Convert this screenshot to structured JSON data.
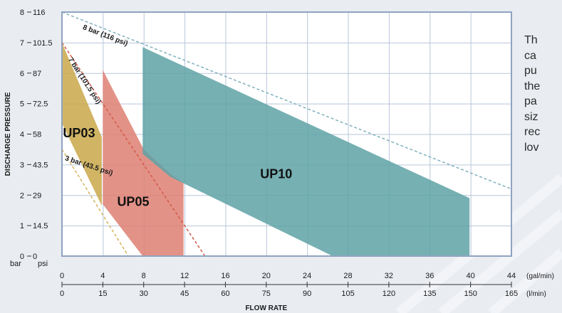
{
  "colors": {
    "background": "#e9ecf1",
    "plot_bg": "#ffffff",
    "grid": "#b9c6da",
    "frame": "#8fa3c0",
    "axis_text": "#1a1a1a",
    "up03": "#c9a84a",
    "up05": "#de7f72",
    "up10": "#5ea2a6",
    "line_8bar": "#7fb0bd",
    "line_7bar": "#d45a4a",
    "line_3bar": "#d6b25a"
  },
  "chart_data": {
    "type": "area",
    "xlabel": "FLOW RATE",
    "ylabel": "DISCHARGE PRESSURE",
    "xlim": [
      0,
      44
    ],
    "ylim": [
      0,
      8
    ],
    "grid": true,
    "x_ticks_gal": [
      "0",
      "4",
      "8",
      "12",
      "16",
      "20",
      "24",
      "28",
      "32",
      "36",
      "40",
      "44"
    ],
    "x_unit_gal": "(gal/min)",
    "x_ticks_l": [
      "0",
      "15",
      "30",
      "45",
      "60",
      "75",
      "90",
      "105",
      "120",
      "135",
      "150",
      "165"
    ],
    "x_unit_l": "(l/min)",
    "y_ticks_bar": [
      "0",
      "1",
      "2",
      "3",
      "4",
      "5",
      "6",
      "7",
      "8"
    ],
    "y_ticks_psi": [
      "0",
      "14.5",
      "29",
      "43.5",
      "58",
      "72.5",
      "87",
      "101.5",
      "116"
    ],
    "y_unit_bar": "bar",
    "y_unit_psi": "psi",
    "series": [
      {
        "name": "UP03",
        "color": "#c9a84a",
        "label_at": [
          0.1,
          3.9
        ],
        "polygon": [
          [
            0,
            7
          ],
          [
            3.9,
            3.9
          ],
          [
            3.9,
            1.65
          ],
          [
            0,
            4.35
          ]
        ]
      },
      {
        "name": "UP05",
        "color": "#de7f72",
        "label_at": [
          5.4,
          1.65
        ],
        "polygon": [
          [
            4,
            6.1
          ],
          [
            8,
            3.5
          ],
          [
            10.6,
            2.7
          ],
          [
            11.9,
            2.4
          ],
          [
            11.9,
            0
          ],
          [
            7.9,
            0
          ],
          [
            4,
            1.7
          ]
        ]
      },
      {
        "name": "UP10",
        "color": "#5ea2a6",
        "label_at": [
          19.4,
          2.55
        ],
        "polygon": [
          [
            7.9,
            6.85
          ],
          [
            39.9,
            1.9
          ],
          [
            39.9,
            0
          ],
          [
            26.5,
            0
          ],
          [
            10.6,
            2.6
          ],
          [
            7.9,
            3.35
          ]
        ]
      }
    ],
    "reference_lines": [
      {
        "label": "8 bar (116 psi)",
        "color": "#7fb0bd",
        "points": [
          [
            0,
            8
          ],
          [
            44,
            2.2
          ]
        ],
        "label_at": [
          2.0,
          7.45
        ],
        "label_angle": 21
      },
      {
        "label": "7 bar (101.5 psi)",
        "color": "#d45a4a",
        "points": [
          [
            0,
            7
          ],
          [
            14,
            0
          ]
        ],
        "label_at": [
          0.6,
          6.45
        ],
        "label_angle": 57
      },
      {
        "label": "3 bar (43.5 psi)",
        "color": "#d6b25a",
        "points": [
          [
            0,
            3.5
          ],
          [
            6.5,
            0
          ]
        ],
        "label_at": [
          0.25,
          3.15
        ],
        "label_angle": 18
      }
    ]
  },
  "side_text_lines": [
    "Th",
    "ca",
    "pu",
    "the",
    "pa",
    "siz",
    "rec",
    "lov"
  ]
}
